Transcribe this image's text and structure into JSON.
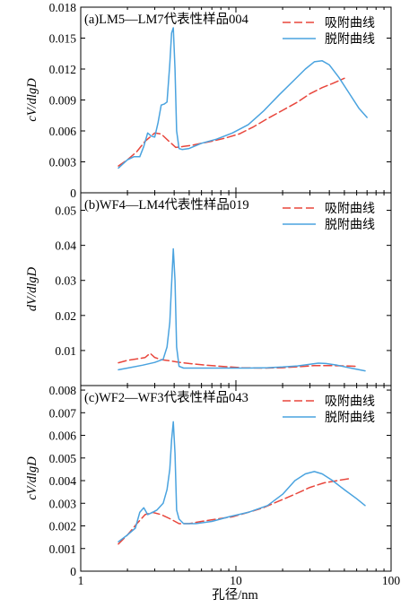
{
  "colors": {
    "adsorption": "#e8463c",
    "desorption": "#4aa3df",
    "frame": "#000000"
  },
  "x_axis": {
    "label": "孔径/nm",
    "scale": "log",
    "range": [
      1,
      100
    ],
    "ticks": [
      1,
      10,
      100
    ],
    "tick_labels": [
      "1",
      "10",
      "100"
    ]
  },
  "chart_data": [
    {
      "type": "line",
      "title": "(a)LM5—LM7代表性样品004",
      "ylabel": "cV/dlgD",
      "ylim": [
        0,
        0.018
      ],
      "yticks": [
        0,
        0.003,
        0.006,
        0.009,
        0.012,
        0.015,
        0.018
      ],
      "ytick_labels": [
        "0",
        "0.003",
        "0.006",
        "0.009",
        "0.012",
        "0.015",
        "0.018"
      ],
      "x_scale": "log",
      "xlim": [
        1,
        100
      ],
      "legend": "top-right",
      "series": [
        {
          "name": "吸附曲线",
          "color_key": "adsorption",
          "dashed": true,
          "x": [
            1.75,
            2.0,
            2.3,
            2.6,
            3.0,
            3.3,
            3.7,
            4.1,
            4.6,
            5.2,
            6.0,
            7.0,
            8.5,
            10.5,
            13,
            16,
            20,
            25,
            30,
            36,
            42,
            50
          ],
          "y": [
            0.0026,
            0.0032,
            0.004,
            0.005,
            0.0058,
            0.0057,
            0.005,
            0.0044,
            0.0045,
            0.0046,
            0.0048,
            0.005,
            0.0053,
            0.0057,
            0.0064,
            0.0072,
            0.008,
            0.0088,
            0.0096,
            0.0102,
            0.0106,
            0.0111
          ]
        },
        {
          "name": "脱附曲线",
          "color_key": "desorption",
          "dashed": false,
          "x": [
            1.75,
            2.0,
            2.2,
            2.4,
            2.55,
            2.7,
            2.85,
            3.0,
            3.15,
            3.3,
            3.45,
            3.6,
            3.75,
            3.85,
            3.95,
            4.05,
            4.15,
            4.3,
            4.5,
            5.0,
            6.0,
            7.5,
            9.5,
            12,
            15,
            19,
            24,
            28,
            32,
            36,
            40,
            46,
            54,
            62,
            70
          ],
          "y": [
            0.0024,
            0.0032,
            0.0035,
            0.0035,
            0.0045,
            0.0058,
            0.0055,
            0.0054,
            0.0068,
            0.0085,
            0.0086,
            0.0088,
            0.0125,
            0.0155,
            0.016,
            0.012,
            0.006,
            0.0043,
            0.0042,
            0.0043,
            0.0048,
            0.0052,
            0.0058,
            0.0066,
            0.0079,
            0.0095,
            0.011,
            0.012,
            0.0127,
            0.0128,
            0.0124,
            0.0112,
            0.0096,
            0.0082,
            0.0073
          ]
        }
      ]
    },
    {
      "type": "line",
      "title": "(b)WF4—LM4代表性样品019",
      "ylabel": "dV/dlgD",
      "ylim": [
        0,
        0.055
      ],
      "yticks": [
        0.01,
        0.02,
        0.03,
        0.04,
        0.05
      ],
      "ytick_labels": [
        "0.01",
        "0.02",
        "0.03",
        "0.04",
        "0.05"
      ],
      "x_scale": "log",
      "xlim": [
        1,
        100
      ],
      "legend": "top-right",
      "series": [
        {
          "name": "吸附曲线",
          "color_key": "adsorption",
          "dashed": true,
          "x": [
            1.75,
            2.0,
            2.3,
            2.6,
            2.8,
            3.0,
            3.3,
            3.7,
            4.2,
            5.0,
            6.5,
            8.5,
            11,
            15,
            20,
            26,
            32,
            40,
            50,
            60
          ],
          "y": [
            0.0065,
            0.0072,
            0.0076,
            0.008,
            0.0092,
            0.008,
            0.0074,
            0.0071,
            0.0067,
            0.0063,
            0.0058,
            0.0054,
            0.0051,
            0.005,
            0.0051,
            0.0054,
            0.0057,
            0.0057,
            0.0056,
            0.0055
          ]
        },
        {
          "name": "脱附曲线",
          "color_key": "desorption",
          "dashed": false,
          "x": [
            1.75,
            2.0,
            2.5,
            3.0,
            3.4,
            3.6,
            3.75,
            3.85,
            3.95,
            4.05,
            4.15,
            4.3,
            4.6,
            5.5,
            7.0,
            9.0,
            12,
            16,
            20,
            25,
            30,
            34,
            38,
            45,
            55,
            68
          ],
          "y": [
            0.0045,
            0.005,
            0.0058,
            0.0066,
            0.0075,
            0.011,
            0.018,
            0.029,
            0.039,
            0.03,
            0.011,
            0.0055,
            0.005,
            0.005,
            0.005,
            0.005,
            0.005,
            0.0051,
            0.0053,
            0.0056,
            0.0061,
            0.0064,
            0.0063,
            0.0058,
            0.005,
            0.0042
          ]
        }
      ]
    },
    {
      "type": "line",
      "title": "(c)WF2—WF3代表性样品043",
      "ylabel": "cV/dlgD",
      "ylim": [
        0,
        0.0082
      ],
      "yticks": [
        0,
        0.001,
        0.002,
        0.003,
        0.004,
        0.005,
        0.006,
        0.007,
        0.008
      ],
      "ytick_labels": [
        "0",
        "0.001",
        "0.002",
        "0.003",
        "0.004",
        "0.005",
        "0.006",
        "0.007",
        "0.008"
      ],
      "x_scale": "log",
      "xlim": [
        1,
        100
      ],
      "legend": "top-right",
      "series": [
        {
          "name": "吸附曲线",
          "color_key": "adsorption",
          "dashed": true,
          "x": [
            1.75,
            2.0,
            2.3,
            2.6,
            2.9,
            3.3,
            3.8,
            4.3,
            5.0,
            6.0,
            7.5,
            9.5,
            12,
            15,
            19,
            24,
            30,
            37,
            45,
            55
          ],
          "y": [
            0.0012,
            0.0016,
            0.0021,
            0.0025,
            0.0026,
            0.0025,
            0.0023,
            0.0021,
            0.0021,
            0.0022,
            0.0023,
            0.0024,
            0.0026,
            0.0028,
            0.0031,
            0.0034,
            0.0037,
            0.0039,
            0.004,
            0.0041
          ]
        },
        {
          "name": "脱附曲线",
          "color_key": "desorption",
          "dashed": false,
          "x": [
            1.75,
            2.0,
            2.25,
            2.4,
            2.55,
            2.7,
            2.9,
            3.1,
            3.4,
            3.6,
            3.75,
            3.85,
            3.95,
            4.05,
            4.15,
            4.3,
            4.6,
            5.5,
            7.0,
            9.0,
            12,
            16,
            20,
            24,
            28,
            32,
            36,
            42,
            50,
            60,
            68
          ],
          "y": [
            0.0013,
            0.0016,
            0.0019,
            0.0026,
            0.0028,
            0.0025,
            0.0026,
            0.0027,
            0.003,
            0.0036,
            0.0045,
            0.0058,
            0.0066,
            0.0052,
            0.0027,
            0.0023,
            0.0021,
            0.0021,
            0.0022,
            0.0024,
            0.0026,
            0.0029,
            0.0034,
            0.004,
            0.0043,
            0.0044,
            0.0043,
            0.004,
            0.0036,
            0.0032,
            0.0029
          ]
        }
      ]
    }
  ]
}
